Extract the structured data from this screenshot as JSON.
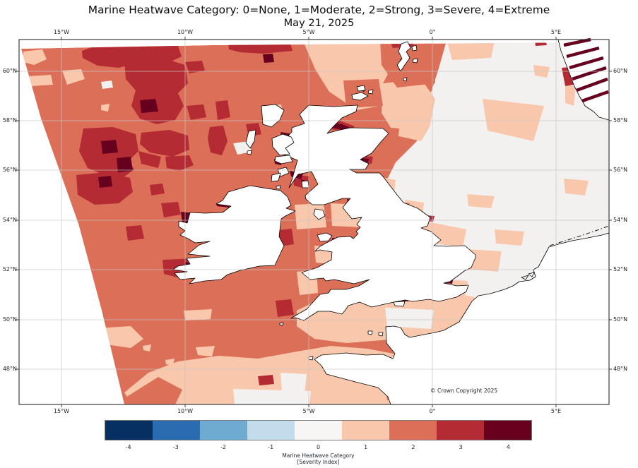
{
  "figure": {
    "title": "Marine Heatwave Category: 0=None, 1=Moderate, 2=Strong, 3=Severe, 4=Extreme",
    "subtitle": "May 21, 2025"
  },
  "axes": {
    "lon_ticks": [
      "15°W",
      "10°W",
      "5°W",
      "0°",
      "5°E"
    ],
    "lat_ticks": [
      "60°N",
      "58°N",
      "56°N",
      "54°N",
      "52°N",
      "50°N",
      "48°N"
    ]
  },
  "colorbar": {
    "ticks": [
      "-4",
      "-3",
      "-2",
      "-1",
      "0",
      "1",
      "2",
      "3",
      "4"
    ],
    "colors": [
      "#053061",
      "#2b6cb0",
      "#6fabd0",
      "#c3dcec",
      "#f7f6f5",
      "#f9c8ac",
      "#dc6f57",
      "#b42b33",
      "#67001f"
    ],
    "label_line1": "Marine Heatwave Category",
    "label_line2": "[Severity Index]"
  },
  "annotations": {
    "copyright": "© Crown Copyright 2025"
  },
  "legend_categories": [
    {
      "value": 0,
      "label": "None"
    },
    {
      "value": 1,
      "label": "Moderate"
    },
    {
      "value": 2,
      "label": "Strong"
    },
    {
      "value": 3,
      "label": "Severe"
    },
    {
      "value": 4,
      "label": "Extreme"
    }
  ],
  "map_colors": {
    "cat0": "#f3f1ef",
    "cat1": "#f9c8ac",
    "cat2": "#dc6f57",
    "cat3": "#b42b33",
    "cat4": "#67001f",
    "land": "#ffffff",
    "coast": "#000000",
    "grid": "#c6c6c6",
    "frame": "#3c3c3c"
  },
  "chart_data": {
    "type": "heatmap",
    "title": "Marine Heatwave Category: 0=None, 1=Moderate, 2=Strong, 3=Severe, 4=Extreme",
    "date": "May 21, 2025",
    "map_extent": {
      "lon": [
        -16.5,
        7.2
      ],
      "lat": [
        46.6,
        61.3
      ]
    },
    "lon_gridlines_deg": [
      -15,
      -10,
      -5,
      0,
      5
    ],
    "lat_gridlines_deg": [
      60,
      58,
      56,
      54,
      52,
      50,
      48
    ],
    "colorbar": {
      "label": "Marine Heatwave Category [Severity Index]",
      "tick_values": [
        -4,
        -3,
        -2,
        -1,
        0,
        1,
        2,
        3,
        4
      ],
      "segment_colors": [
        "#053061",
        "#2b6cb0",
        "#6fabd0",
        "#c3dcec",
        "#f7f6f5",
        "#f9c8ac",
        "#dc6f57",
        "#b42b33",
        "#67001f"
      ]
    },
    "category_definitions": {
      "0": "None",
      "1": "Moderate",
      "2": "Strong",
      "3": "Severe",
      "4": "Extreme"
    },
    "observed_regions": [
      {
        "region": "NW Atlantic west of Scotland/Ireland",
        "category": "2-3 with pockets of 4"
      },
      {
        "region": "West Irish coastal waters",
        "category": "3 with slivers of 4"
      },
      {
        "region": "Irish Sea and Celtic Sea",
        "category": "1-2"
      },
      {
        "region": "English Channel",
        "category": "1 with patches of 0"
      },
      {
        "region": "Central and eastern North Sea",
        "category": "0 with patches of 1"
      },
      {
        "region": "Norwegian fjords (NE corner)",
        "category": "3-4"
      },
      {
        "region": "Scottish sea lochs and firths",
        "category": "3-4 slivers"
      }
    ]
  }
}
